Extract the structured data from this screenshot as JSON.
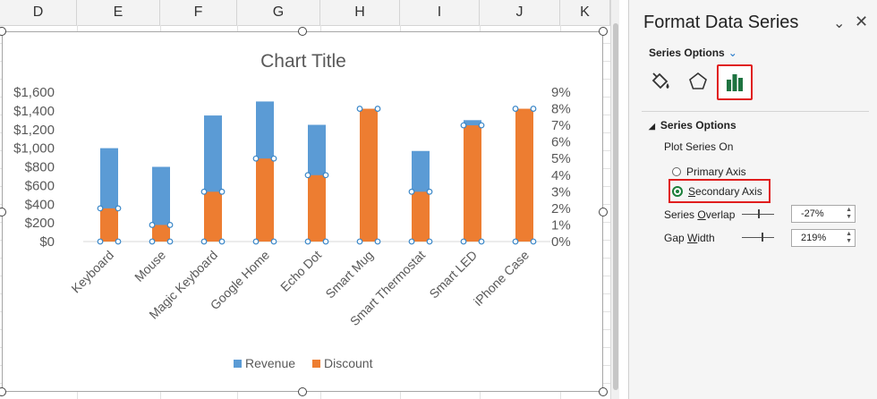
{
  "sheet": {
    "columns": [
      "D",
      "E",
      "F",
      "G",
      "H",
      "I",
      "J",
      "K"
    ]
  },
  "chart": {
    "title": "Chart Title"
  },
  "chart_data": {
    "type": "bar",
    "title": "Chart Title",
    "categories": [
      "Keyboard",
      "Mouse",
      "Magic Keyboard",
      "Google Home",
      "Echo Dot",
      "Smart Mug",
      "Smart Thermostat",
      "Smart LED",
      "iPhone Case"
    ],
    "series": [
      {
        "name": "Revenue",
        "axis": "primary",
        "color": "#5b9bd5",
        "values": [
          1000,
          800,
          1350,
          1500,
          1250,
          1300,
          970,
          1300,
          1400
        ]
      },
      {
        "name": "Discount",
        "axis": "secondary",
        "color": "#ed7d31",
        "values": [
          0.02,
          0.01,
          0.03,
          0.05,
          0.04,
          0.08,
          0.03,
          0.07,
          0.08
        ]
      }
    ],
    "y_primary": {
      "ylim": [
        0,
        1600
      ],
      "ticks": [
        "$0",
        "$200",
        "$400",
        "$600",
        "$800",
        "$1,000",
        "$1,200",
        "$1,400",
        "$1,600"
      ]
    },
    "y_secondary": {
      "ylim": [
        0,
        0.09
      ],
      "ticks": [
        "0%",
        "1%",
        "2%",
        "3%",
        "4%",
        "5%",
        "6%",
        "7%",
        "8%",
        "9%"
      ]
    },
    "grid": false,
    "legend": "bottom"
  },
  "pane": {
    "title": "Format Data Series",
    "dropdown_label": "Series Options",
    "section_label": "Series Options",
    "plot_on_label": "Plot Series On",
    "primary_axis": "Primary Axis",
    "secondary_axis_prefix": "S",
    "secondary_axis_rest": "econdary Axis",
    "overlap_label_a": "Series ",
    "overlap_label_u": "O",
    "overlap_label_b": "verlap",
    "overlap_value": "-27%",
    "gap_label_a": "Gap ",
    "gap_label_u": "W",
    "gap_label_b": "idth",
    "gap_value": "219%",
    "selected_option": "Secondary Axis"
  }
}
